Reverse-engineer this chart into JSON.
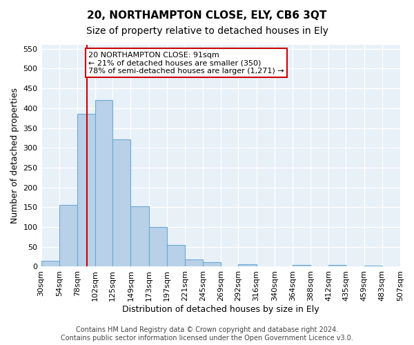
{
  "title": "20, NORTHAMPTON CLOSE, ELY, CB6 3QT",
  "subtitle": "Size of property relative to detached houses in Ely",
  "xlabel": "Distribution of detached houses by size in Ely",
  "ylabel": "Number of detached properties",
  "bar_color": "#b8d0e8",
  "bar_edge_color": "#6aaad4",
  "background_color": "#e8f0f8",
  "grid_color": "#ffffff",
  "annotation_text": "20 NORTHAMPTON CLOSE: 91sqm\n← 21% of detached houses are smaller (350)\n78% of semi-detached houses are larger (1,271) →",
  "property_line_x": 91,
  "bin_edges": [
    30,
    54,
    78,
    102,
    125,
    149,
    173,
    197,
    221,
    245,
    269,
    292,
    316,
    340,
    364,
    388,
    412,
    435,
    459,
    483,
    507
  ],
  "bar_heights": [
    15,
    155,
    385,
    420,
    322,
    153,
    100,
    55,
    19,
    11,
    0,
    6,
    0,
    0,
    5,
    0,
    4,
    0,
    3,
    0,
    4
  ],
  "tick_labels": [
    "30sqm",
    "54sqm",
    "78sqm",
    "102sqm",
    "125sqm",
    "149sqm",
    "173sqm",
    "197sqm",
    "221sqm",
    "245sqm",
    "269sqm",
    "292sqm",
    "316sqm",
    "340sqm",
    "364sqm",
    "388sqm",
    "412sqm",
    "435sqm",
    "459sqm",
    "483sqm",
    "507sqm"
  ],
  "ylim": [
    0,
    560
  ],
  "yticks": [
    0,
    50,
    100,
    150,
    200,
    250,
    300,
    350,
    400,
    450,
    500,
    550
  ],
  "footer": "Contains HM Land Registry data © Crown copyright and database right 2024.\nContains public sector information licensed under the Open Government Licence v3.0.",
  "annotation_box_color": "#ffffff",
  "annotation_box_edge_color": "#cc0000",
  "red_line_color": "#cc0000",
  "title_fontsize": 11,
  "subtitle_fontsize": 10,
  "axis_label_fontsize": 9,
  "tick_fontsize": 8,
  "annotation_fontsize": 8,
  "footer_fontsize": 7
}
